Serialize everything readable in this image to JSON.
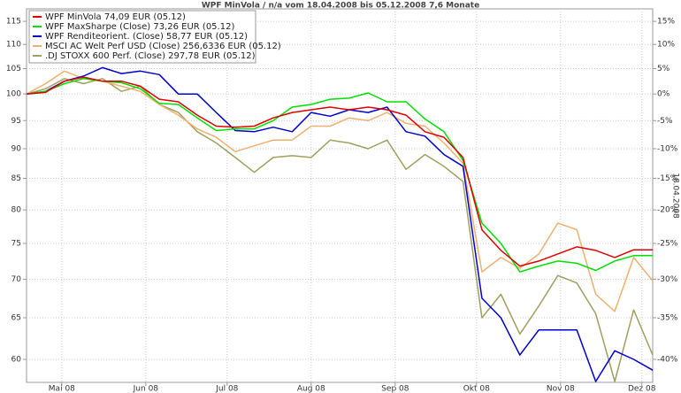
{
  "chart_data": {
    "type": "line",
    "title": "WPF MinVola / n/a vom 18.04.2008 bis 05.12.2008 7,6 Monate",
    "y2label": "18.04.2008",
    "x": [
      0,
      7,
      14,
      21,
      28,
      35,
      42,
      49,
      56,
      63,
      70,
      77,
      84,
      91,
      98,
      105,
      112,
      119,
      126,
      133,
      140,
      147,
      154,
      161,
      168,
      175,
      182,
      189,
      196,
      203,
      210,
      217,
      224,
      231
    ],
    "xlim": [
      0,
      231
    ],
    "xticks": [
      {
        "value": 13,
        "label": "Mai 08"
      },
      {
        "value": 44,
        "label": "Jun 08"
      },
      {
        "value": 74,
        "label": "Jul 08"
      },
      {
        "value": 105,
        "label": "Aug 08"
      },
      {
        "value": 136,
        "label": "Sep 08"
      },
      {
        "value": 166,
        "label": "Okt 08"
      },
      {
        "value": 197,
        "label": "Nov 08"
      },
      {
        "value": 227,
        "label": "Dez 08"
      }
    ],
    "ylim": [
      57.4,
      117.8
    ],
    "log": true,
    "yticks": [
      60,
      65,
      70,
      75,
      80,
      85,
      90,
      95,
      100,
      105,
      110,
      115
    ],
    "y2lim": [
      -42.6,
      17.8
    ],
    "y2ticks": [
      {
        "value": -40,
        "label": "-40%"
      },
      {
        "value": -35,
        "label": "-35%"
      },
      {
        "value": -30,
        "label": "-30%"
      },
      {
        "value": -25,
        "label": "-25%"
      },
      {
        "value": -20,
        "label": "-20%"
      },
      {
        "value": -15,
        "label": "-15%"
      },
      {
        "value": -10,
        "label": "-10%"
      },
      {
        "value": -5,
        "label": "-5%"
      },
      {
        "value": 0,
        "label": "0%"
      },
      {
        "value": 5,
        "label": "5%"
      },
      {
        "value": 10,
        "label": "10%"
      },
      {
        "value": 15,
        "label": "15%"
      }
    ],
    "grid": true,
    "legend": "upper left",
    "series": [
      {
        "name": "WPF MinVola 74,09 EUR (05.12)",
        "color": "#e00000",
        "values": [
          100,
          100.3,
          102.5,
          103.3,
          102.5,
          102.5,
          101.5,
          99,
          98.5,
          96,
          94,
          93.8,
          94,
          95.5,
          96.5,
          97,
          97.5,
          97,
          97.5,
          97,
          96,
          93,
          92,
          88.5,
          77,
          74,
          71.8,
          72.5,
          73.5,
          74.5,
          74,
          73,
          74.09,
          74.09
        ]
      },
      {
        "name": "WPF MaxSharpe (Close) 73,26 EUR (05.12)",
        "color": "#00e000",
        "values": [
          100,
          100.5,
          102,
          103,
          102.5,
          102.2,
          101,
          98.2,
          98,
          95.5,
          93.2,
          93.5,
          93.5,
          95,
          97.5,
          98,
          99,
          99.2,
          100.2,
          98.5,
          98.5,
          95.3,
          93,
          88,
          78,
          75,
          71,
          71.8,
          72.5,
          72.2,
          71.2,
          72.5,
          73.26,
          73.26
        ]
      },
      {
        "name": "WPF Renditeorient. (Close) 58,77 EUR (05.12)",
        "color": "#0000d0",
        "values": [
          100,
          100.5,
          102.5,
          103.5,
          105.2,
          104,
          104.5,
          103.8,
          100,
          100,
          96.5,
          93.2,
          93,
          93.8,
          93,
          96.5,
          95.8,
          97,
          96.5,
          97.5,
          93,
          92.2,
          89,
          87,
          67.5,
          65,
          60.5,
          63.5,
          63.5,
          63.5,
          57.5,
          61,
          60,
          58.77
        ]
      },
      {
        "name": "MSCI AC Welt Perf USD (Close) 256,6336 EUR (05.12)",
        "color": "#f0b070",
        "values": [
          100,
          102,
          104.5,
          103,
          102.5,
          101.5,
          100.5,
          98,
          96,
          93.5,
          92,
          89.5,
          90.5,
          91.5,
          91.5,
          94,
          94,
          95.5,
          95,
          96.5,
          94.5,
          94,
          91,
          87.5,
          71,
          73,
          71.5,
          73.5,
          78,
          77,
          68,
          65.8,
          73,
          69.8
        ]
      },
      {
        "name": ".DJ STOXX 600 Perf. (Close) 297,78 EUR (05.12)",
        "color": "#a0a060",
        "values": [
          100,
          101,
          103,
          102,
          103,
          100.5,
          101.5,
          98,
          96.5,
          93,
          91,
          88.5,
          86,
          88.5,
          88.8,
          88.5,
          91.5,
          91,
          90,
          91.5,
          86.5,
          89,
          87,
          84.5,
          65,
          68,
          63,
          66.5,
          70.5,
          69.5,
          65.5,
          57.5,
          66,
          60.5
        ]
      }
    ]
  }
}
